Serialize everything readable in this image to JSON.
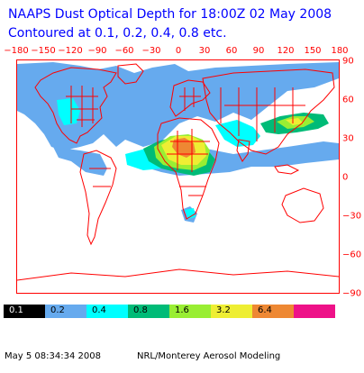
{
  "title": {
    "line1": "NAAPS Dust Optical Depth for 18:00Z 02 May 2008",
    "line2": "Contoured at 0.1, 0.2, 0.4, 0.8 etc."
  },
  "axes": {
    "longitude_labels": [
      "−180",
      "−150",
      "−120",
      "−90",
      "−60",
      "−30",
      "0",
      "30",
      "60",
      "90",
      "120",
      "150",
      "180"
    ],
    "latitude_labels": [
      "90",
      "60",
      "30",
      "0",
      "−30",
      "−60",
      "−90"
    ]
  },
  "colorbar": [
    {
      "label": "0.1",
      "color": "#000000",
      "text_color": "#ffffff"
    },
    {
      "label": "0.2",
      "color": "#66aaee",
      "text_color": "#000000"
    },
    {
      "label": "0.4",
      "color": "#00ffff",
      "text_color": "#000000"
    },
    {
      "label": "0.8",
      "color": "#00bb77",
      "text_color": "#000000"
    },
    {
      "label": "1.6",
      "color": "#99ee33",
      "text_color": "#000000"
    },
    {
      "label": "3.2",
      "color": "#eeee33",
      "text_color": "#000000"
    },
    {
      "label": "6.4",
      "color": "#ee8833",
      "text_color": "#000000"
    },
    {
      "label": "",
      "color": "#ee1188",
      "text_color": "#000000"
    }
  ],
  "footer": {
    "timestamp": "May  5 08:34:34 2008",
    "credit": "NRL/Monterey Aerosol Modeling"
  }
}
